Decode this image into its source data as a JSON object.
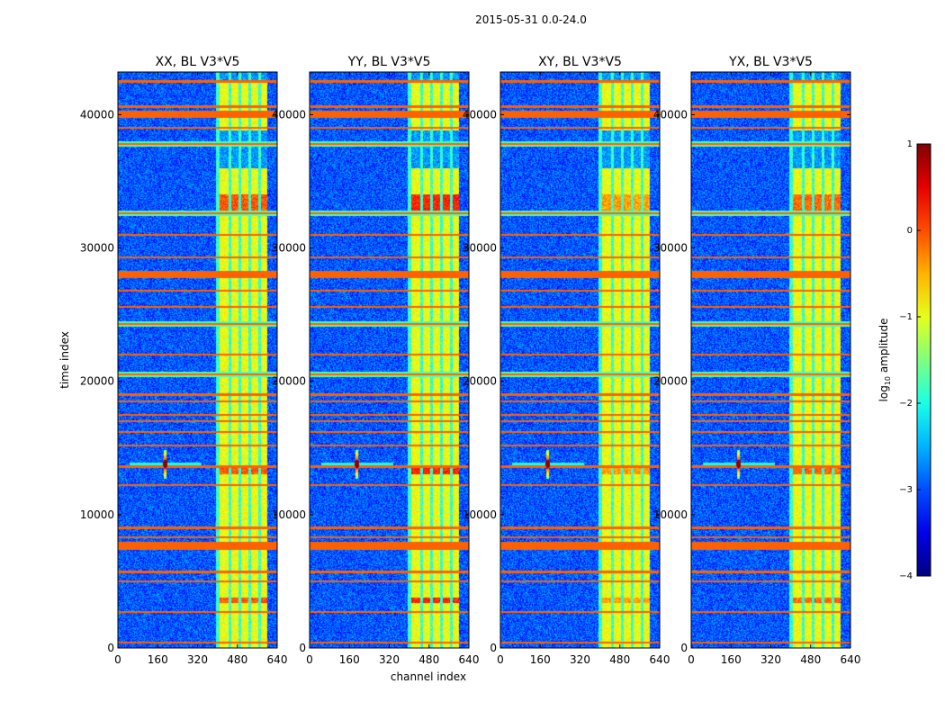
{
  "figure": {
    "suptitle": "2015-05-31 0.0-24.0",
    "xlabel": "channel index",
    "ylabel": "time index",
    "colorbar_label": "log",
    "colorbar_label_sub": "10",
    "colorbar_label_rest": " amplitude",
    "colorbar_ticks": [
      "1",
      "0",
      "−1",
      "−2",
      "−3",
      "−4"
    ]
  },
  "chart_data": {
    "type": "heatmap",
    "colormap": "jet",
    "colorbar": {
      "vmin": -4,
      "vmax": 1,
      "ticks": [
        1,
        0,
        -1,
        -2,
        -3,
        -4
      ],
      "label": "log10 amplitude"
    },
    "xlim": [
      0,
      640
    ],
    "ylim": [
      0,
      43200
    ],
    "xticks": [
      0,
      160,
      320,
      480,
      640
    ],
    "yticks": [
      0,
      10000,
      20000,
      30000,
      40000
    ],
    "panels": [
      {
        "title": "XX, BL V3*V5",
        "xtick_labels": [
          "0",
          "160",
          "320",
          "480",
          "640"
        ],
        "ytick_labels": [
          "0",
          "10000",
          "20000",
          "30000",
          "40000"
        ]
      },
      {
        "title": "YY, BL V3*V5",
        "xtick_labels": [
          "0",
          "160",
          "320",
          "480",
          "640"
        ],
        "ytick_labels": [
          "0",
          "10000",
          "20000",
          "30000",
          "40000"
        ]
      },
      {
        "title": "XY, BL V3*V5",
        "xtick_labels": [
          "0",
          "160",
          "320",
          "480",
          "640"
        ],
        "ytick_labels": [
          "0",
          "10000",
          "20000",
          "30000",
          "40000"
        ]
      },
      {
        "title": "YX, BL V3*V5",
        "xtick_labels": [
          "0",
          "160",
          "320",
          "480",
          "640"
        ],
        "ytick_labels": [
          "0",
          "10000",
          "20000",
          "30000",
          "40000"
        ]
      }
    ],
    "bright_channel_bands": [
      [
        410,
        445
      ],
      [
        455,
        485
      ],
      [
        495,
        525
      ],
      [
        535,
        565
      ],
      [
        575,
        600
      ]
    ],
    "source_feature": {
      "channel": 190,
      "time": 13800
    },
    "flagged_time_rows": [
      400,
      2700,
      5000,
      5700,
      7600,
      7900,
      8300,
      9000,
      12200,
      13600,
      15200,
      16200,
      17000,
      17500,
      18500,
      19000,
      20500,
      22000,
      24300,
      25600,
      26800,
      28000,
      29300,
      31000,
      32600,
      37800,
      39000,
      40000,
      40600,
      42500
    ]
  }
}
